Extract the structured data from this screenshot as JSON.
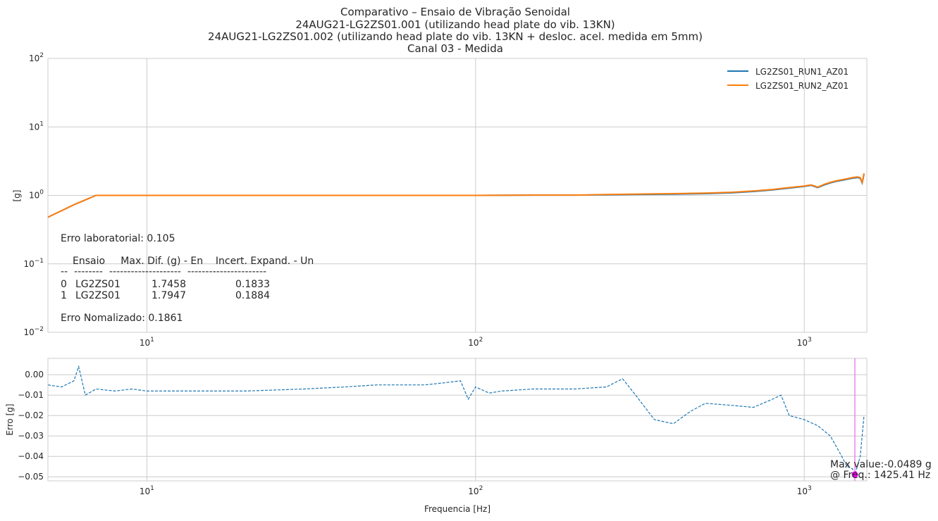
{
  "title_lines": [
    "Comparativo – Ensaio de Vibração Senoidal",
    "24AUG21-LG2ZS01.001 (utilizando head plate do vib. 13KN)",
    "24AUG21-LG2ZS01.002 (utilizando head plate do vib. 13KN + desloc. acel. medida em 5mm)",
    "Canal 03 - Medida"
  ],
  "colors": {
    "run1": "#1f77b4",
    "run2": "#ff7f0e",
    "error_line": "#1f77b4",
    "max_marker": "#ff00ff",
    "max_vline": "#ee82ee",
    "grid": "#cccccc"
  },
  "top_text": {
    "erro_lab": "Erro laboratorial: 0.105",
    "table_header": "Ensaio     Max. Dif. (g) - En    Incert. Expand. - Un",
    "table_sep": "--  --------  --------------------  ----------------------",
    "table_rows": [
      {
        "idx": "0",
        "ensaio": "LG2ZS01",
        "max_dif": "1.7458",
        "incert": "0.1833"
      },
      {
        "idx": "1",
        "ensaio": "LG2ZS01",
        "max_dif": "1.7947",
        "incert": "0.1884"
      }
    ],
    "erro_norm": "Erro Nomalizado: 0.1861"
  },
  "annotation": {
    "line1": "Max value:-0.0489 g",
    "line2": "@ Freq.: 1425.41 Hz"
  },
  "chart_data": [
    {
      "type": "line",
      "title": "Comparativo – Ensaio de Vibração Senoidal / 24AUG21-LG2ZS01.001 (utilizando head plate do vib. 13KN) / 24AUG21-LG2ZS01.002 (utilizando head plate do vib. 13KN + desloc. acel. medida em 5mm) / Canal 03 - Medida",
      "xlabel": "",
      "ylabel": "[g]",
      "xscale": "log",
      "yscale": "log",
      "xlim": [
        5,
        1550
      ],
      "ylim": [
        0.01,
        100
      ],
      "grid": true,
      "legend": "top-right",
      "x_ticks": [
        {
          "value": 10,
          "base": "10",
          "exp": "1"
        },
        {
          "value": 100,
          "base": "10",
          "exp": "2"
        },
        {
          "value": 1000,
          "base": "10",
          "exp": "3"
        }
      ],
      "y_ticks": [
        {
          "value": 0.01,
          "base": "10",
          "exp": "−2"
        },
        {
          "value": 0.1,
          "base": "10",
          "exp": "−1"
        },
        {
          "value": 1,
          "base": "10",
          "exp": "0"
        },
        {
          "value": 10,
          "base": "10",
          "exp": "1"
        },
        {
          "value": 100,
          "base": "10",
          "exp": "2"
        }
      ],
      "series": [
        {
          "name": "LG2ZS01_RUN1_AZ01",
          "x": [
            5,
            6,
            7,
            10,
            20,
            50,
            100,
            150,
            200,
            250,
            300,
            400,
            500,
            600,
            700,
            800,
            900,
            1000,
            1050,
            1100,
            1150,
            1200,
            1250,
            1300,
            1350,
            1400,
            1450,
            1480,
            1500,
            1510,
            1520
          ],
          "y": [
            0.48,
            0.73,
            1.0,
            1.0,
            1.0,
            1.0,
            1.0,
            1.01,
            1.01,
            1.02,
            1.03,
            1.04,
            1.06,
            1.09,
            1.14,
            1.2,
            1.28,
            1.35,
            1.4,
            1.3,
            1.42,
            1.52,
            1.6,
            1.66,
            1.72,
            1.78,
            1.82,
            1.78,
            1.52,
            1.75,
            2.05
          ]
        },
        {
          "name": "LG2ZS01_RUN2_AZ01",
          "x": [
            5,
            6,
            7,
            10,
            20,
            50,
            100,
            150,
            200,
            250,
            300,
            400,
            500,
            600,
            700,
            800,
            900,
            1000,
            1050,
            1100,
            1150,
            1200,
            1250,
            1300,
            1350,
            1400,
            1450,
            1480,
            1500,
            1510,
            1520
          ],
          "y": [
            0.48,
            0.73,
            1.0,
            1.0,
            1.0,
            1.0,
            1.0,
            1.01,
            1.01,
            1.03,
            1.04,
            1.06,
            1.08,
            1.11,
            1.16,
            1.22,
            1.3,
            1.37,
            1.42,
            1.32,
            1.45,
            1.55,
            1.63,
            1.69,
            1.75,
            1.82,
            1.86,
            1.82,
            1.55,
            1.79,
            2.1
          ]
        }
      ]
    },
    {
      "type": "line",
      "xlabel": "Frequencia [Hz]",
      "ylabel": "Erro [g]",
      "xscale": "log",
      "xlim": [
        5,
        1550
      ],
      "ylim": [
        -0.052,
        0.008
      ],
      "grid": true,
      "x_ticks": [
        {
          "value": 10,
          "base": "10",
          "exp": "1"
        },
        {
          "value": 100,
          "base": "10",
          "exp": "2"
        },
        {
          "value": 1000,
          "base": "10",
          "exp": "3"
        }
      ],
      "y_ticks": [
        {
          "value": 0.0,
          "label": "0.00"
        },
        {
          "value": -0.01,
          "label": "−0.01"
        },
        {
          "value": -0.02,
          "label": "−0.02"
        },
        {
          "value": -0.03,
          "label": "−0.03"
        },
        {
          "value": -0.04,
          "label": "−0.04"
        },
        {
          "value": -0.05,
          "label": "−0.05"
        }
      ],
      "series": [
        {
          "x": [
            5,
            5.5,
            6,
            6.2,
            6.5,
            7,
            8,
            9,
            10,
            12,
            15,
            20,
            30,
            40,
            50,
            60,
            70,
            80,
            90,
            95,
            100,
            110,
            120,
            150,
            200,
            250,
            280,
            300,
            350,
            400,
            450,
            500,
            600,
            700,
            800,
            850,
            900,
            1000,
            1100,
            1200,
            1250,
            1300,
            1350,
            1400,
            1425,
            1450,
            1480,
            1500,
            1510,
            1520
          ],
          "y": [
            -0.005,
            -0.006,
            -0.003,
            0.004,
            -0.01,
            -0.007,
            -0.008,
            -0.007,
            -0.008,
            -0.008,
            -0.008,
            -0.008,
            -0.007,
            -0.006,
            -0.005,
            -0.005,
            -0.005,
            -0.004,
            -0.003,
            -0.012,
            -0.006,
            -0.009,
            -0.008,
            -0.007,
            -0.007,
            -0.006,
            -0.002,
            -0.008,
            -0.022,
            -0.024,
            -0.018,
            -0.014,
            -0.015,
            -0.016,
            -0.012,
            -0.01,
            -0.02,
            -0.022,
            -0.025,
            -0.03,
            -0.035,
            -0.04,
            -0.045,
            -0.046,
            -0.0489,
            -0.045,
            -0.04,
            -0.03,
            -0.025,
            -0.02
          ]
        }
      ],
      "max_point": {
        "x": 1425.41,
        "y": -0.0489
      }
    }
  ]
}
